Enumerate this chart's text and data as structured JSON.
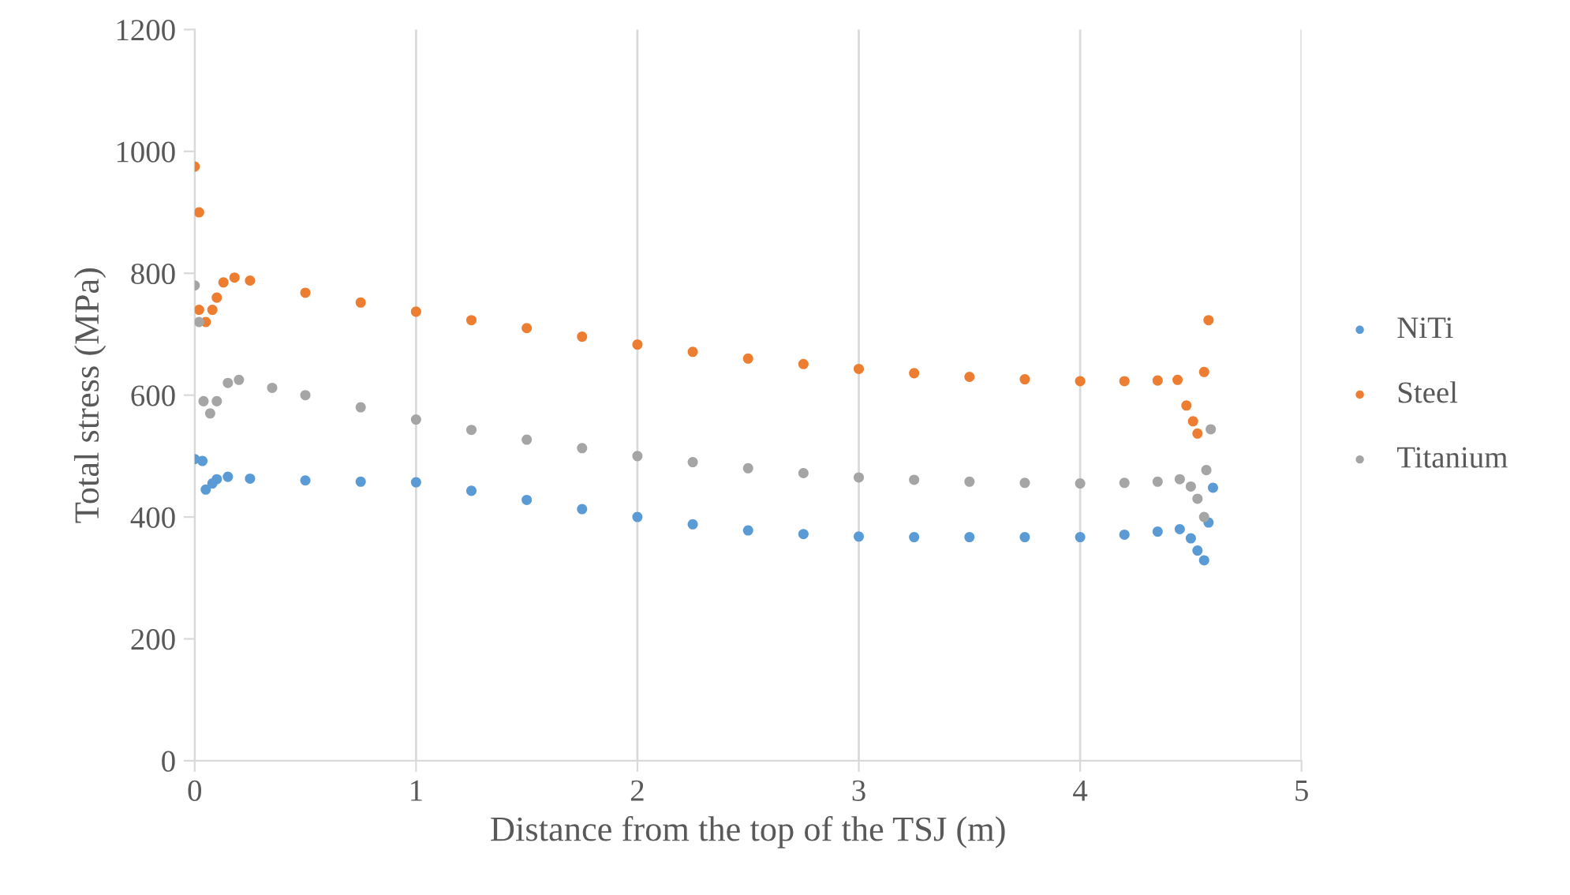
{
  "chart_data": {
    "type": "scatter",
    "xlabel": "Distance from the top of the TSJ (m)",
    "ylabel": "Total stress (MPa)",
    "xlim": [
      0,
      5
    ],
    "ylim": [
      0,
      1200
    ],
    "xticks": [
      0,
      1,
      2,
      3,
      4,
      5
    ],
    "yticks": [
      0,
      200,
      400,
      600,
      800,
      1000,
      1200
    ],
    "grid": "x",
    "legend": "right",
    "marker": "circle",
    "series": [
      {
        "name": "NiTi",
        "color": "#5b9bd5",
        "x": [
          0,
          0.035,
          0.05,
          0.08,
          0.1,
          0.15,
          0.25,
          0.5,
          0.75,
          1,
          1.25,
          1.5,
          1.75,
          2,
          2.25,
          2.5,
          2.75,
          3,
          3.25,
          3.5,
          3.75,
          4,
          4.2,
          4.35,
          4.45,
          4.5,
          4.53,
          4.56,
          4.58,
          4.6
        ],
        "values": [
          495,
          492,
          445,
          455,
          462,
          466,
          463,
          460,
          458,
          457,
          443,
          428,
          413,
          400,
          388,
          378,
          372,
          368,
          367,
          367,
          367,
          367,
          371,
          376,
          380,
          365,
          345,
          329,
          391,
          448
        ]
      },
      {
        "name": "Steel",
        "color": "#ed7d31",
        "x": [
          0,
          0.02,
          0.02,
          0.05,
          0.08,
          0.1,
          0.13,
          0.18,
          0.25,
          0.5,
          0.75,
          1,
          1.25,
          1.5,
          1.75,
          2,
          2.25,
          2.5,
          2.75,
          3,
          3.25,
          3.5,
          3.75,
          4,
          4.2,
          4.35,
          4.44,
          4.48,
          4.51,
          4.53,
          4.56,
          4.58
        ],
        "values": [
          975,
          900,
          740,
          720,
          740,
          760,
          785,
          793,
          788,
          768,
          752,
          737,
          723,
          710,
          696,
          683,
          671,
          660,
          651,
          643,
          636,
          630,
          626,
          623,
          623,
          624,
          625,
          583,
          557,
          537,
          638,
          723
        ]
      },
      {
        "name": "Titanium",
        "color": "#a5a5a5",
        "x": [
          0,
          0.02,
          0.04,
          0.07,
          0.1,
          0.15,
          0.2,
          0.35,
          0.5,
          0.75,
          1,
          1.25,
          1.5,
          1.75,
          2,
          2.25,
          2.5,
          2.75,
          3,
          3.25,
          3.5,
          3.75,
          4,
          4.2,
          4.35,
          4.45,
          4.5,
          4.53,
          4.56,
          4.57,
          4.59
        ],
        "values": [
          780,
          720,
          590,
          570,
          590,
          620,
          625,
          612,
          600,
          580,
          560,
          543,
          527,
          513,
          500,
          490,
          480,
          472,
          465,
          461,
          458,
          456,
          455,
          456,
          458,
          462,
          450,
          430,
          400,
          477,
          544
        ]
      }
    ]
  }
}
